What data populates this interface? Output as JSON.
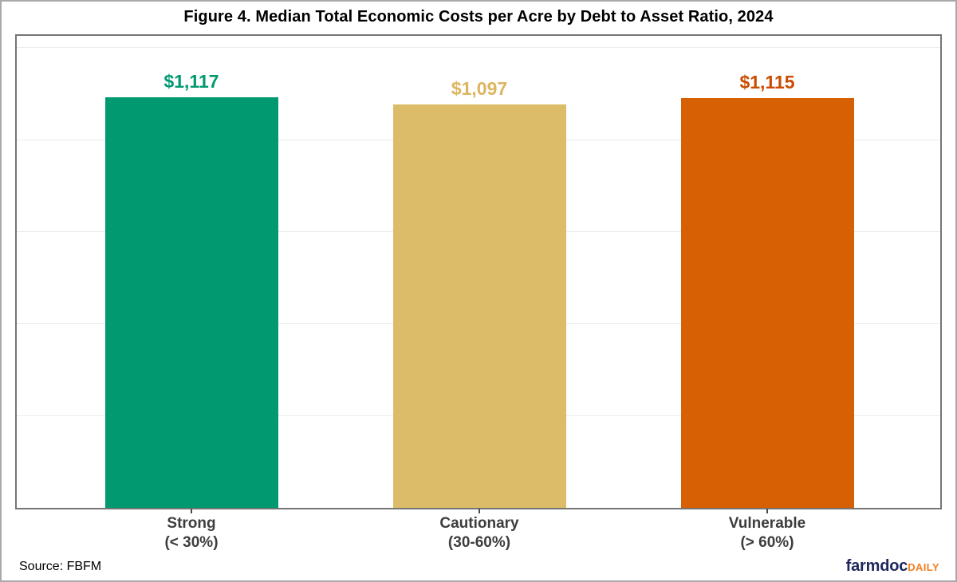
{
  "chart_data": {
    "type": "bar",
    "title": "Figure 4. Median Total Economic Costs per Acre by Debt to Asset Ratio, 2024",
    "categories": [
      [
        "Strong",
        "(< 30%)"
      ],
      [
        "Cautionary",
        "(30-60%)"
      ],
      [
        "Vulnerable",
        "(> 60%)"
      ]
    ],
    "category_names": [
      "strong",
      "cautionary",
      "vulnerable"
    ],
    "values": [
      1117,
      1097,
      1115
    ],
    "value_labels": [
      "$1,117",
      "$1,097",
      "$1,115"
    ],
    "bar_colors": [
      "#019a70",
      "#ddbc69",
      "#d75f04"
    ],
    "value_label_colors": [
      "#019a70",
      "#dcb55e",
      "#c94c00"
    ],
    "xlabel": "",
    "ylabel": "",
    "ylim": [
      0,
      1283
    ],
    "grid": true,
    "grid_interval": 250,
    "gridline_color": "#ebebeb",
    "legend": false,
    "y_axis_tick_labels_visible": false
  },
  "footer": {
    "source": "Source: FBFM",
    "logo_farmdoc": "farmdoc",
    "logo_daily": "DAILY",
    "logo_farmdoc_color": "#1f265b",
    "logo_daily_color": "#f57e20"
  }
}
